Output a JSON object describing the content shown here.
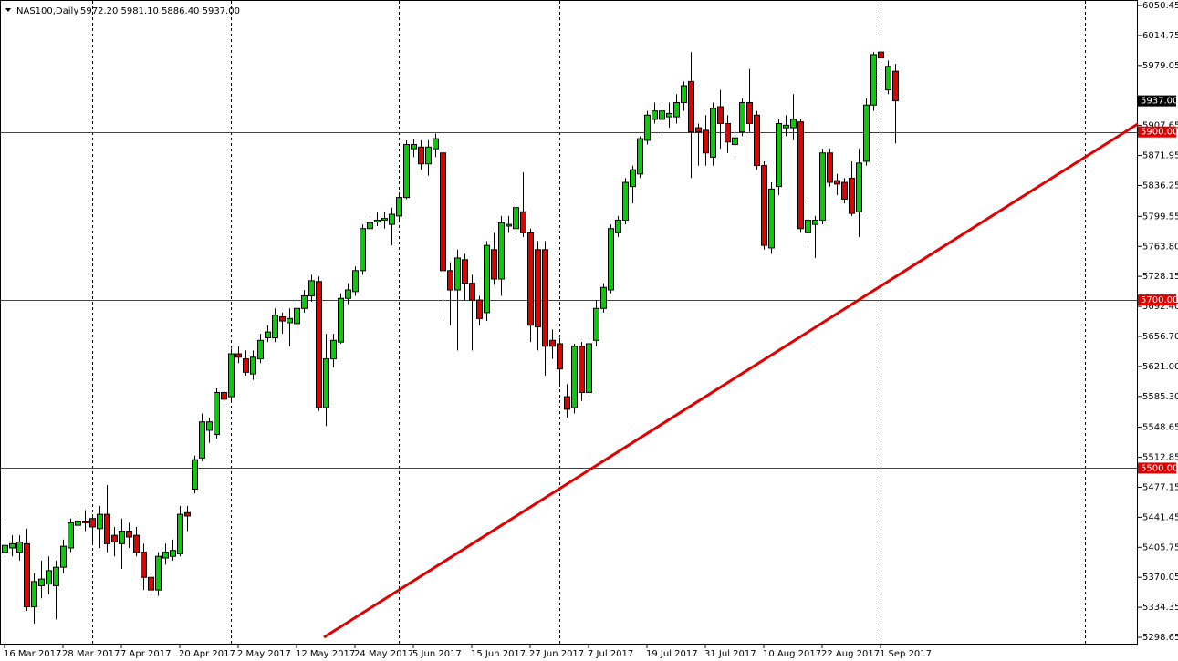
{
  "chart_data": {
    "type": "candlestick",
    "symbol": "NAS100,Daily",
    "ohlc_label": "5972.20 5981.10 5886.40 5937.00",
    "categories": [
      "16 Mar 2017",
      null,
      null,
      null,
      null,
      null,
      null,
      null,
      "28 Mar 2017",
      null,
      null,
      null,
      null,
      null,
      null,
      null,
      "7 Apr 2017",
      null,
      null,
      null,
      null,
      null,
      null,
      null,
      "20 Apr 2017",
      null,
      null,
      null,
      null,
      null,
      null,
      null,
      "2 May 2017",
      null,
      null,
      null,
      null,
      null,
      null,
      null,
      "12 May 2017",
      null,
      null,
      null,
      null,
      null,
      null,
      null,
      "24 May 2017",
      null,
      null,
      null,
      null,
      null,
      null,
      null,
      "5 Jun 2017",
      null,
      null,
      null,
      null,
      null,
      null,
      null,
      "15 Jun 2017",
      null,
      null,
      null,
      null,
      null,
      null,
      null,
      "27 Jun 2017",
      null,
      null,
      null,
      null,
      null,
      null,
      null,
      "7 Jul 2017",
      null,
      null,
      null,
      null,
      null,
      null,
      null,
      "19 Jul 2017",
      null,
      null,
      null,
      null,
      null,
      null,
      null,
      "31 Jul 2017",
      null,
      null,
      null,
      null,
      null,
      null,
      null,
      "10 Aug 2017",
      null,
      null,
      null,
      null,
      null,
      null,
      null,
      "22 Aug 2017",
      null,
      null,
      null,
      null,
      null,
      null,
      null,
      "1 Sep 2017",
      null,
      null
    ],
    "open": [
      5400,
      5405,
      5400,
      5410,
      5335,
      5360,
      5362,
      5360,
      5382,
      5405,
      5432,
      5437,
      5440,
      5428,
      5445,
      5420,
      5410,
      5425,
      5420,
      5400,
      5370,
      5355,
      5393,
      5395,
      5398,
      5447,
      5475,
      5512,
      5545,
      5540,
      5590,
      5585,
      5636,
      5630,
      5612,
      5630,
      5655,
      5655,
      5680,
      5673,
      5672,
      5690,
      5705,
      5722,
      5572,
      5630,
      5650,
      5702,
      5710,
      5735,
      5785,
      5793,
      5795,
      5790,
      5800,
      5822,
      5880,
      5882,
      5862,
      5880,
      5875,
      5735,
      5712,
      5748,
      5720,
      5700,
      5685,
      5760,
      5725,
      5788,
      5785,
      5805,
      5780,
      5760,
      5760,
      5652,
      5648,
      5585,
      5572,
      5645,
      5590,
      5652,
      5690,
      5712,
      5780,
      5795,
      5835,
      5850,
      5890,
      5915,
      5915,
      5918,
      5918,
      5935,
      5960,
      5905,
      5902,
      5870,
      5930,
      5910,
      5885,
      5900,
      5935,
      5920,
      5860,
      5762,
      5835,
      5905,
      5905,
      5912,
      5780,
      5790,
      5795,
      5875,
      5842,
      5840,
      5845,
      5805,
      5865,
      5932,
      5995,
      5950,
      5972.2
    ],
    "high": [
      5440,
      5420,
      5420,
      5428,
      5375,
      5390,
      5395,
      5390,
      5415,
      5440,
      5445,
      5450,
      5445,
      5455,
      5480,
      5430,
      5440,
      5435,
      5430,
      5410,
      5375,
      5400,
      5410,
      5415,
      5455,
      5455,
      5515,
      5565,
      5560,
      5595,
      5595,
      5642,
      5645,
      5640,
      5640,
      5660,
      5670,
      5690,
      5685,
      5690,
      5700,
      5712,
      5730,
      5728,
      5660,
      5660,
      5708,
      5720,
      5740,
      5790,
      5800,
      5805,
      5805,
      5810,
      5825,
      5890,
      5892,
      5890,
      5890,
      5898,
      5895,
      5745,
      5760,
      5755,
      5730,
      5705,
      5770,
      5780,
      5800,
      5800,
      5815,
      5852,
      5785,
      5770,
      5770,
      5665,
      5655,
      5600,
      5648,
      5650,
      5655,
      5700,
      5720,
      5790,
      5800,
      5845,
      5860,
      5895,
      5925,
      5935,
      5932,
      5935,
      5945,
      5960,
      5995,
      5910,
      5920,
      5935,
      5950,
      5920,
      5905,
      5940,
      5975,
      5925,
      5865,
      5840,
      5915,
      5920,
      5945,
      5915,
      5815,
      5800,
      5880,
      5880,
      5850,
      5845,
      5865,
      5880,
      5940,
      5995,
      6015,
      5985,
      5981.1
    ],
    "low": [
      5390,
      5395,
      5390,
      5330,
      5315,
      5345,
      5350,
      5320,
      5375,
      5400,
      5425,
      5425,
      5410,
      5405,
      5400,
      5395,
      5380,
      5405,
      5395,
      5355,
      5348,
      5348,
      5385,
      5390,
      5395,
      5425,
      5470,
      5508,
      5530,
      5535,
      5575,
      5580,
      5625,
      5610,
      5605,
      5625,
      5650,
      5650,
      5660,
      5645,
      5668,
      5685,
      5698,
      5568,
      5550,
      5620,
      5648,
      5695,
      5705,
      5730,
      5775,
      5788,
      5785,
      5765,
      5795,
      5820,
      5870,
      5855,
      5848,
      5870,
      5680,
      5670,
      5640,
      5700,
      5640,
      5670,
      5675,
      5718,
      5705,
      5780,
      5775,
      5775,
      5650,
      5640,
      5610,
      5630,
      5600,
      5560,
      5565,
      5580,
      5585,
      5645,
      5685,
      5708,
      5775,
      5790,
      5815,
      5845,
      5885,
      5910,
      5900,
      5905,
      5910,
      5925,
      5845,
      5860,
      5860,
      5860,
      5880,
      5875,
      5870,
      5895,
      5900,
      5855,
      5760,
      5755,
      5825,
      5895,
      5890,
      5780,
      5770,
      5750,
      5790,
      5835,
      5825,
      5815,
      5800,
      5775,
      5860,
      5925,
      5985,
      5945,
      5886.4
    ],
    "close": [
      5408,
      5410,
      5412,
      5335,
      5365,
      5368,
      5378,
      5382,
      5407,
      5435,
      5437,
      5435,
      5430,
      5445,
      5410,
      5412,
      5425,
      5418,
      5400,
      5370,
      5355,
      5395,
      5400,
      5402,
      5445,
      5443,
      5510,
      5555,
      5555,
      5590,
      5582,
      5636,
      5632,
      5614,
      5632,
      5652,
      5662,
      5682,
      5675,
      5678,
      5690,
      5705,
      5723,
      5572,
      5630,
      5652,
      5702,
      5712,
      5735,
      5785,
      5792,
      5795,
      5797,
      5802,
      5822,
      5885,
      5885,
      5862,
      5882,
      5892,
      5735,
      5712,
      5750,
      5720,
      5700,
      5678,
      5765,
      5725,
      5792,
      5790,
      5810,
      5780,
      5670,
      5668,
      5645,
      5645,
      5618,
      5570,
      5645,
      5590,
      5648,
      5690,
      5715,
      5785,
      5795,
      5840,
      5855,
      5892,
      5920,
      5925,
      5925,
      5922,
      5935,
      5955,
      5900,
      5900,
      5875,
      5928,
      5910,
      5888,
      5893,
      5935,
      5910,
      5860,
      5765,
      5832,
      5910,
      5908,
      5915,
      5785,
      5795,
      5795,
      5875,
      5840,
      5838,
      5820,
      5803,
      5863,
      5932,
      5992,
      5988,
      5978,
      5937
    ],
    "up_color": "#00d000",
    "down_color": "#e00000",
    "ylim": [
      5290,
      6057
    ],
    "yticks": [
      6050.45,
      6014.75,
      5979.05,
      5907.65,
      5871.95,
      5836.25,
      5799.55,
      {
        "value": 5763.8,
        "label": "5763.80"
      },
      5728.15,
      {
        "value": 5692.4,
        "label": "5692.40"
      },
      {
        "value": 5656.7,
        "label": "5656.70"
      },
      {
        "value": 5621,
        "label": "5621.00"
      },
      {
        "value": 5585.3,
        "label": "5585.30"
      },
      5548.65,
      5512.85,
      5477.15,
      5441.45,
      5405.75,
      5370.05,
      5334.35,
      5298.65
    ],
    "levels": [
      {
        "value": 5900,
        "label": "5900.00"
      },
      {
        "value": 5700,
        "label": "5700.00"
      },
      {
        "value": 5500,
        "label": "5500.00"
      }
    ],
    "level_color": "#e00000",
    "current_price": {
      "value": 5937,
      "label": "5937.00"
    },
    "trendline": {
      "x": [
        43.75,
        155.25
      ],
      "y": [
        5298.65,
        5909.6
      ],
      "color": "#e00000"
    }
  }
}
